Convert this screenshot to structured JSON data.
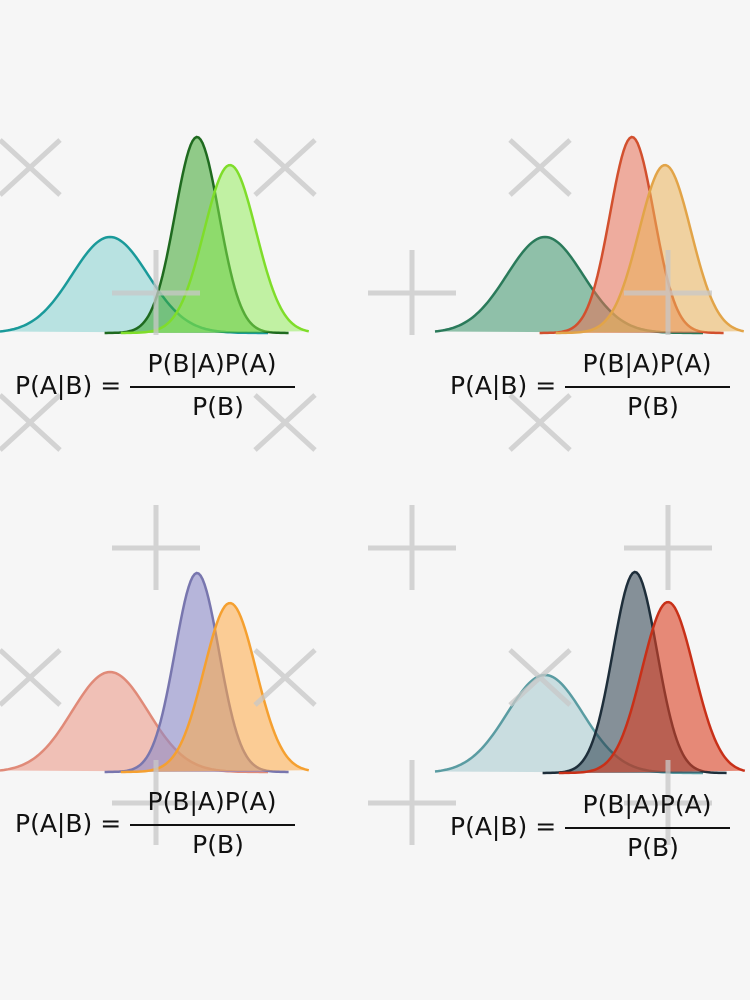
{
  "panels": [
    {
      "lhs": "P(A|B) =",
      "numerator": "P(B|A)P(A)",
      "denominator": "P(B)"
    },
    {
      "lhs": "P(A|B) =",
      "numerator": "P(B|A)P(A)",
      "denominator": "P(B)"
    },
    {
      "lhs": "P(A|B) =",
      "numerator": "P(B|A)P(A)",
      "denominator": "P(B)"
    },
    {
      "lhs": "P(A|B) =",
      "numerator": "P(B|A)P(A)",
      "denominator": "P(B)"
    }
  ]
}
